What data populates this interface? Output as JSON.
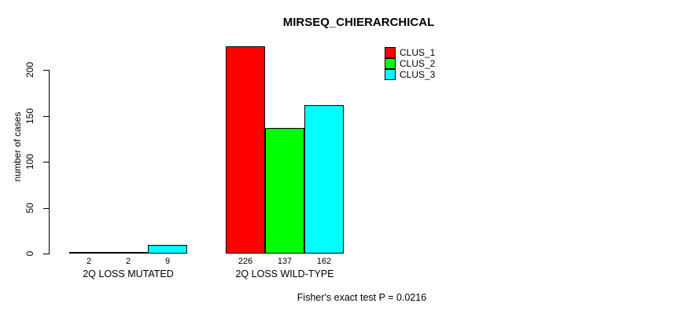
{
  "title": "MIRSEQ_CHIERARCHICAL",
  "footer": "Fisher's exact test P = 0.0216",
  "legend": [
    {
      "label": "CLUS_1",
      "color": "#ff0000"
    },
    {
      "label": "CLUS_2",
      "color": "#00ff00"
    },
    {
      "label": "CLUS_3",
      "color": "#00ffff"
    }
  ],
  "chart_data": {
    "type": "bar",
    "title": "MIRSEQ_CHIERARCHICAL",
    "categories": [
      "2Q LOSS MUTATED",
      "2Q LOSS WILD-TYPE"
    ],
    "series": [
      {
        "name": "CLUS_1",
        "color": "#ff0000",
        "values": [
          2,
          226
        ]
      },
      {
        "name": "CLUS_2",
        "color": "#00ff00",
        "values": [
          2,
          137
        ]
      },
      {
        "name": "CLUS_3",
        "color": "#00ffff",
        "values": [
          9,
          162
        ]
      }
    ],
    "bar_value_labels": [
      [
        "2",
        "2",
        "9"
      ],
      [
        "226",
        "137",
        "162"
      ]
    ],
    "xlabel": "",
    "ylabel": "number of cases",
    "yticks": [
      0,
      50,
      100,
      150,
      200
    ],
    "ylim": [
      0,
      235
    ],
    "grid": false,
    "legend_position": "top-right",
    "annotation": "Fisher's exact test P = 0.0216"
  }
}
